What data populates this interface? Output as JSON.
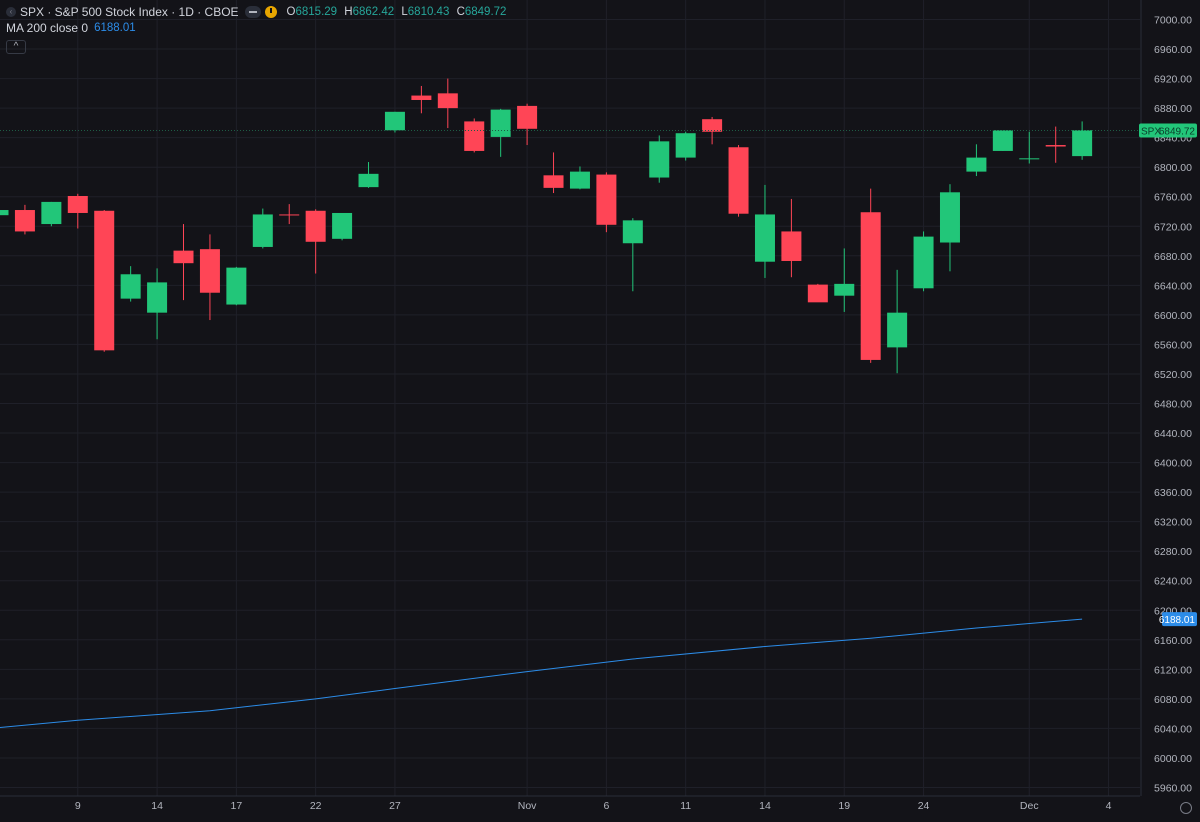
{
  "header": {
    "title": "SPX · S&P 500 Stock Index · 1D · CBOE",
    "open_label": "O",
    "open": "6815.29",
    "high_label": "H",
    "high": "6862.42",
    "low_label": "L",
    "low": "6810.43",
    "close_label": "C",
    "close": "6849.72"
  },
  "indicator": {
    "label": "MA 200 close 0",
    "value": "6188.01"
  },
  "colors": {
    "up": "#22c679",
    "down": "#ff4556",
    "ma": "#2c8ce8",
    "bg": "#131318",
    "grid": "#1f2029",
    "axis_text": "#b2b5be"
  },
  "chart_data": {
    "type": "candlestick",
    "symbol": "SPX",
    "ylim": [
      5960,
      7000
    ],
    "y_ticks": [
      7000,
      6960,
      6920,
      6880,
      6840,
      6800,
      6760,
      6720,
      6680,
      6640,
      6600,
      6560,
      6520,
      6480,
      6440,
      6400,
      6360,
      6320,
      6280,
      6240,
      6200,
      6160,
      6120,
      6080,
      6040,
      6000,
      5960
    ],
    "x_tick_labels": [
      {
        "label": "9",
        "index": 3
      },
      {
        "label": "14",
        "index": 6
      },
      {
        "label": "17",
        "index": 9
      },
      {
        "label": "22",
        "index": 12
      },
      {
        "label": "27",
        "index": 15
      },
      {
        "label": "Nov",
        "index": 20
      },
      {
        "label": "6",
        "index": 23
      },
      {
        "label": "11",
        "index": 26
      },
      {
        "label": "14",
        "index": 29
      },
      {
        "label": "19",
        "index": 32
      },
      {
        "label": "24",
        "index": 35
      },
      {
        "label": "Dec",
        "index": 39
      },
      {
        "label": "4",
        "index": 42
      }
    ],
    "candles": [
      {
        "o": 6735,
        "h": 6740,
        "l": 6728,
        "c": 6742
      },
      {
        "o": 6742,
        "h": 6749,
        "l": 6709,
        "c": 6713
      },
      {
        "o": 6723,
        "h": 6753,
        "l": 6720,
        "c": 6753
      },
      {
        "o": 6761,
        "h": 6764,
        "l": 6717,
        "c": 6738
      },
      {
        "o": 6741,
        "h": 6742,
        "l": 6550,
        "c": 6552
      },
      {
        "o": 6622,
        "h": 6666,
        "l": 6618,
        "c": 6655
      },
      {
        "o": 6603,
        "h": 6663,
        "l": 6567,
        "c": 6644
      },
      {
        "o": 6687,
        "h": 6723,
        "l": 6620,
        "c": 6670
      },
      {
        "o": 6689,
        "h": 6709,
        "l": 6593,
        "c": 6630
      },
      {
        "o": 6614,
        "h": 6665,
        "l": 6613,
        "c": 6664
      },
      {
        "o": 6692,
        "h": 6744,
        "l": 6690,
        "c": 6736
      },
      {
        "o": 6736,
        "h": 6750,
        "l": 6723,
        "c": 6735
      },
      {
        "o": 6741,
        "h": 6743,
        "l": 6656,
        "c": 6699
      },
      {
        "o": 6703,
        "h": 6737,
        "l": 6701,
        "c": 6738
      },
      {
        "o": 6773,
        "h": 6807,
        "l": 6772,
        "c": 6791
      },
      {
        "o": 6850,
        "h": 6875,
        "l": 6847,
        "c": 6875
      },
      {
        "o": 6897,
        "h": 6910,
        "l": 6873,
        "c": 6891
      },
      {
        "o": 6900,
        "h": 6920,
        "l": 6853,
        "c": 6880
      },
      {
        "o": 6862,
        "h": 6866,
        "l": 6820,
        "c": 6822
      },
      {
        "o": 6841,
        "h": 6879,
        "l": 6814,
        "c": 6878
      },
      {
        "o": 6883,
        "h": 6886,
        "l": 6830,
        "c": 6852
      },
      {
        "o": 6789,
        "h": 6820,
        "l": 6765,
        "c": 6772
      },
      {
        "o": 6771,
        "h": 6801,
        "l": 6770,
        "c": 6794
      },
      {
        "o": 6790,
        "h": 6793,
        "l": 6712,
        "c": 6722
      },
      {
        "o": 6697,
        "h": 6731,
        "l": 6632,
        "c": 6728
      },
      {
        "o": 6786,
        "h": 6843,
        "l": 6779,
        "c": 6835
      },
      {
        "o": 6813,
        "h": 6848,
        "l": 6809,
        "c": 6846
      },
      {
        "o": 6865,
        "h": 6868,
        "l": 6831,
        "c": 6848
      },
      {
        "o": 6827,
        "h": 6830,
        "l": 6733,
        "c": 6737
      },
      {
        "o": 6672,
        "h": 6776,
        "l": 6650,
        "c": 6736
      },
      {
        "o": 6713,
        "h": 6757,
        "l": 6651,
        "c": 6673
      },
      {
        "o": 6641,
        "h": 6642,
        "l": 6618,
        "c": 6617
      },
      {
        "o": 6626,
        "h": 6690,
        "l": 6604,
        "c": 6642
      },
      {
        "o": 6739,
        "h": 6771,
        "l": 6535,
        "c": 6539
      },
      {
        "o": 6556,
        "h": 6661,
        "l": 6521,
        "c": 6603
      },
      {
        "o": 6636,
        "h": 6713,
        "l": 6632,
        "c": 6706
      },
      {
        "o": 6698,
        "h": 6777,
        "l": 6659,
        "c": 6766
      },
      {
        "o": 6794,
        "h": 6831,
        "l": 6788,
        "c": 6813
      },
      {
        "o": 6822,
        "h": 6849,
        "l": 6822,
        "c": 6850
      },
      {
        "o": 6812,
        "h": 6848,
        "l": 6805,
        "c": 6812
      },
      {
        "o": 6830,
        "h": 6855,
        "l": 6806,
        "c": 6828
      },
      {
        "o": 6815,
        "h": 6862,
        "l": 6810,
        "c": 6850
      }
    ],
    "last_price": {
      "label": "SPX",
      "value": 6849.72,
      "value_text": "6849.72"
    },
    "ma": {
      "name": "MA 200 close 0",
      "last_value_text": "6188.01",
      "points": [
        [
          -3,
          6035
        ],
        [
          0,
          6041
        ],
        [
          3,
          6051
        ],
        [
          8,
          6064
        ],
        [
          12,
          6080
        ],
        [
          15,
          6094
        ],
        [
          20,
          6117
        ],
        [
          24,
          6134
        ],
        [
          29,
          6151
        ],
        [
          33,
          6162
        ],
        [
          37,
          6176
        ],
        [
          41,
          6188
        ]
      ]
    }
  }
}
